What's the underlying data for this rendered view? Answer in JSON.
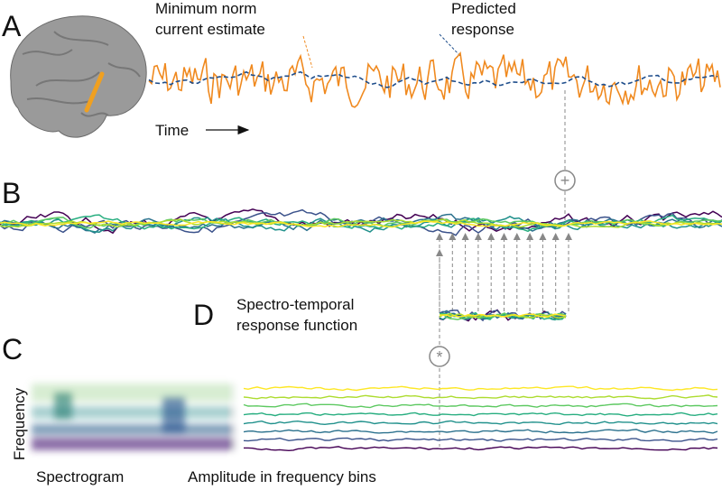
{
  "panels": {
    "a": {
      "letter": "A",
      "estimate_label": [
        "Minimum norm",
        "current estimate"
      ],
      "prediction_label": [
        "Predicted",
        "response"
      ],
      "time_label": "Time"
    },
    "b": {
      "letter": "B",
      "operator": "+"
    },
    "c": {
      "letter": "C",
      "operator": "*",
      "axis_label": "Frequency",
      "spectrogram_label": "Spectrogram",
      "bins_label": "Amplitude in frequency bins"
    },
    "d": {
      "letter": "D",
      "title": [
        "Spectro-temporal",
        "response function"
      ]
    }
  }
}
